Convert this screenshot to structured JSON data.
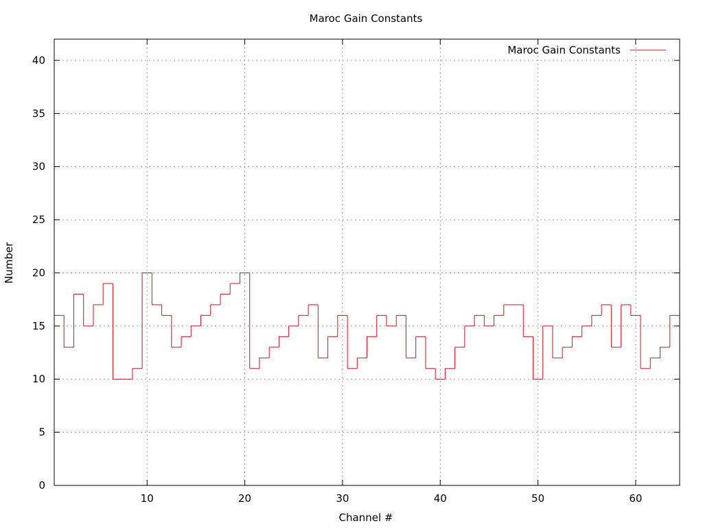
{
  "chart_data": {
    "type": "line",
    "style": "histogram-steps",
    "title": "Maroc Gain Constants",
    "xlabel": "Channel #",
    "ylabel": "Number",
    "xlim": [
      0.5,
      64.5
    ],
    "ylim": [
      0,
      42
    ],
    "xticks": [
      10,
      20,
      30,
      40,
      50,
      60
    ],
    "yticks": [
      0,
      5,
      10,
      15,
      20,
      25,
      30,
      35,
      40
    ],
    "grid": true,
    "legend_position": "top-right",
    "series": [
      {
        "name": "Maroc Gain Constants",
        "color": "#d0101c",
        "x": [
          1,
          2,
          3,
          4,
          5,
          6,
          7,
          8,
          9,
          10,
          11,
          12,
          13,
          14,
          15,
          16,
          17,
          18,
          19,
          20,
          21,
          22,
          23,
          24,
          25,
          26,
          27,
          28,
          29,
          30,
          31,
          32,
          33,
          34,
          35,
          36,
          37,
          38,
          39,
          40,
          41,
          42,
          43,
          44,
          45,
          46,
          47,
          48,
          49,
          50,
          51,
          52,
          53,
          54,
          55,
          56,
          57,
          58,
          59,
          60,
          61,
          62,
          63,
          64
        ],
        "values": [
          16,
          13,
          18,
          15,
          17,
          19,
          10,
          10,
          11,
          20,
          17,
          16,
          13,
          14,
          15,
          16,
          17,
          18,
          19,
          20,
          11,
          12,
          13,
          14,
          15,
          16,
          17,
          12,
          14,
          16,
          11,
          12,
          14,
          16,
          15,
          16,
          12,
          14,
          11,
          10,
          11,
          13,
          15,
          16,
          15,
          16,
          17,
          17,
          14,
          10,
          15,
          12,
          13,
          14,
          15,
          16,
          17,
          13,
          17,
          16,
          11,
          12,
          13,
          16
        ]
      }
    ]
  }
}
